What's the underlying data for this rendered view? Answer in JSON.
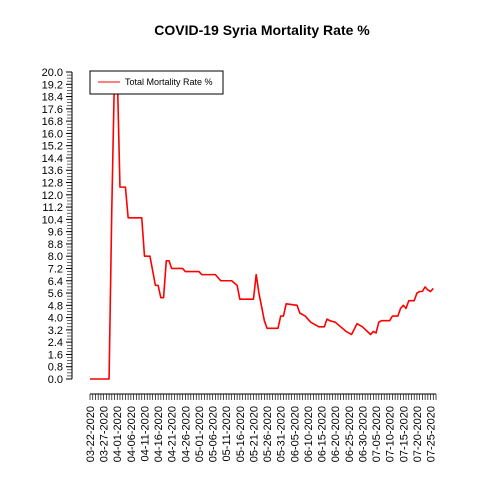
{
  "chart_data": {
    "type": "line",
    "title": "COVID-19 Syria Mortality Rate %",
    "xlabel": "",
    "ylabel": "",
    "ylim": [
      0,
      20
    ],
    "yticks": [
      "0.0",
      "0.8",
      "1.6",
      "2.4",
      "3.2",
      "4.0",
      "4.8",
      "5.6",
      "6.4",
      "7.2",
      "8.0",
      "8.8",
      "9.6",
      "10.4",
      "11.2",
      "12.0",
      "12.8",
      "13.6",
      "14.4",
      "15.2",
      "16.0",
      "16.8",
      "17.6",
      "18.4",
      "19.2",
      "20.0"
    ],
    "xtick_labels": [
      "03-22-2020",
      "03-27-2020",
      "04-01-2020",
      "04-06-2020",
      "04-11-2020",
      "04-16-2020",
      "04-21-2020",
      "04-26-2020",
      "05-01-2020",
      "05-06-2020",
      "05-11-2020",
      "05-16-2020",
      "05-21-2020",
      "05-26-2020",
      "05-31-2020",
      "06-05-2020",
      "06-10-2020",
      "06-15-2020",
      "06-20-2020",
      "06-25-2020",
      "06-30-2020",
      "07-05-2020",
      "07-10-2020",
      "07-15-2020",
      "07-20-2020",
      "07-25-2020"
    ],
    "x_range": [
      "2020-03-22",
      "2020-07-27"
    ],
    "legend": {
      "position": "top-left"
    },
    "grid": false,
    "series": [
      {
        "name": "Total Mortality Rate %",
        "color": "#ff0000",
        "points": [
          [
            "2020-03-22",
            0.0
          ],
          [
            "2020-03-29",
            0.0
          ],
          [
            "2020-03-30",
            11.1
          ],
          [
            "2020-03-31",
            20.0
          ],
          [
            "2020-04-01",
            20.0
          ],
          [
            "2020-04-02",
            12.5
          ],
          [
            "2020-04-04",
            12.5
          ],
          [
            "2020-04-05",
            10.5
          ],
          [
            "2020-04-10",
            10.5
          ],
          [
            "2020-04-11",
            8.0
          ],
          [
            "2020-04-13",
            8.0
          ],
          [
            "2020-04-15",
            6.1
          ],
          [
            "2020-04-16",
            6.1
          ],
          [
            "2020-04-17",
            5.3
          ],
          [
            "2020-04-18",
            5.3
          ],
          [
            "2020-04-19",
            7.7
          ],
          [
            "2020-04-20",
            7.7
          ],
          [
            "2020-04-21",
            7.2
          ],
          [
            "2020-04-25",
            7.2
          ],
          [
            "2020-04-26",
            7.0
          ],
          [
            "2020-05-01",
            7.0
          ],
          [
            "2020-05-02",
            6.8
          ],
          [
            "2020-05-07",
            6.8
          ],
          [
            "2020-05-09",
            6.4
          ],
          [
            "2020-05-13",
            6.4
          ],
          [
            "2020-05-15",
            6.1
          ],
          [
            "2020-05-16",
            5.2
          ],
          [
            "2020-05-21",
            5.2
          ],
          [
            "2020-05-22",
            6.8
          ],
          [
            "2020-05-23",
            5.6
          ],
          [
            "2020-05-25",
            3.8
          ],
          [
            "2020-05-26",
            3.3
          ],
          [
            "2020-05-30",
            3.3
          ],
          [
            "2020-05-31",
            4.1
          ],
          [
            "2020-06-01",
            4.1
          ],
          [
            "2020-06-02",
            4.9
          ],
          [
            "2020-06-06",
            4.8
          ],
          [
            "2020-06-07",
            4.3
          ],
          [
            "2020-06-09",
            4.1
          ],
          [
            "2020-06-11",
            3.7
          ],
          [
            "2020-06-14",
            3.4
          ],
          [
            "2020-06-16",
            3.4
          ],
          [
            "2020-06-17",
            3.9
          ],
          [
            "2020-06-18",
            3.8
          ],
          [
            "2020-06-20",
            3.7
          ],
          [
            "2020-06-22",
            3.4
          ],
          [
            "2020-06-24",
            3.1
          ],
          [
            "2020-06-26",
            2.9
          ],
          [
            "2020-06-28",
            3.6
          ],
          [
            "2020-06-30",
            3.4
          ],
          [
            "2020-07-03",
            2.9
          ],
          [
            "2020-07-04",
            3.1
          ],
          [
            "2020-07-05",
            3.0
          ],
          [
            "2020-07-06",
            3.7
          ],
          [
            "2020-07-07",
            3.8
          ],
          [
            "2020-07-10",
            3.8
          ],
          [
            "2020-07-11",
            4.1
          ],
          [
            "2020-07-13",
            4.1
          ],
          [
            "2020-07-14",
            4.6
          ],
          [
            "2020-07-15",
            4.8
          ],
          [
            "2020-07-16",
            4.6
          ],
          [
            "2020-07-17",
            5.1
          ],
          [
            "2020-07-19",
            5.1
          ],
          [
            "2020-07-20",
            5.6
          ],
          [
            "2020-07-21",
            5.7
          ],
          [
            "2020-07-22",
            5.7
          ],
          [
            "2020-07-23",
            6.0
          ],
          [
            "2020-07-24",
            5.8
          ],
          [
            "2020-07-25",
            5.7
          ],
          [
            "2020-07-26",
            5.9
          ]
        ]
      }
    ]
  }
}
